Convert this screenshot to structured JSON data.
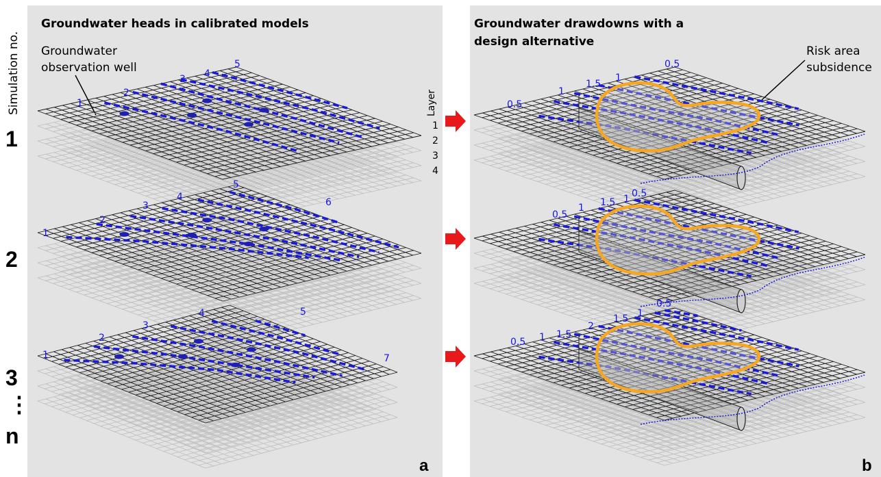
{
  "sidebar": {
    "title": "Simulation no.",
    "simulations": [
      "1",
      "2",
      "3",
      "⋮",
      "n"
    ]
  },
  "panel_a": {
    "title": "Groundwater heads in calibrated models",
    "letter": "a",
    "well_label_line1": "Groundwater",
    "well_label_line2": "observation well",
    "layer_title": "Layer",
    "layers": [
      "1",
      "2",
      "3",
      "4"
    ],
    "maps": [
      {
        "contour_labels": [
          "1",
          "2",
          "3",
          "4",
          "5"
        ]
      },
      {
        "contour_labels": [
          "1",
          "2",
          "3",
          "4",
          "5",
          "6"
        ]
      },
      {
        "contour_labels": [
          "1",
          "2",
          "3",
          "4",
          "5",
          "7"
        ]
      }
    ]
  },
  "panel_b": {
    "title_line1": "Groundwater drawdowns with a",
    "title_line2": "design alternative",
    "letter": "b",
    "risk_label_line1": "Risk area",
    "risk_label_line2": "subsidence",
    "maps": [
      {
        "contour_labels": [
          "0.5",
          "1",
          "1.5",
          "1",
          "0.5"
        ]
      },
      {
        "contour_labels": [
          "0.5",
          "1",
          "1.5",
          "1",
          "0.5"
        ]
      },
      {
        "contour_labels": [
          "0.5",
          "1",
          "1.5",
          "2",
          "1.5",
          "1",
          "0.5"
        ]
      }
    ]
  },
  "colors": {
    "panel_bg": "#e3e3e3",
    "contour": "#1a1ad9",
    "risk_outline": "#f5a623",
    "arrow": "#e8191b"
  }
}
